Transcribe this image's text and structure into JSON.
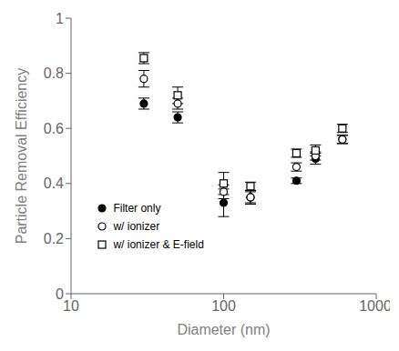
{
  "chart_data": {
    "type": "scatter",
    "xlabel": "Diameter (nm)",
    "ylabel": "Particle Removal Efficiency",
    "log": "x",
    "xlim": [
      10,
      1000
    ],
    "xticks": [
      10,
      100,
      1000
    ],
    "ylim": [
      0,
      1
    ],
    "yticks": [
      0,
      0.2,
      0.4,
      0.6,
      0.8,
      1
    ],
    "grid": false,
    "legend": "lower left",
    "series": [
      {
        "name": "Filter only",
        "color": "black",
        "marker": "filled_circle",
        "x": [
          30,
          50,
          100,
          150,
          300,
          400,
          600
        ],
        "values": [
          0.69,
          0.64,
          0.33,
          0.35,
          0.41,
          0.49,
          0.56
        ],
        "yerr": [
          0.02,
          0.02,
          0.05,
          0.02,
          0.01,
          0.02,
          0.015
        ]
      },
      {
        "name": "w/ ionizer",
        "color": "black",
        "marker": "open_circle",
        "x": [
          30,
          50,
          100,
          150,
          300,
          400,
          600
        ],
        "values": [
          0.78,
          0.69,
          0.37,
          0.35,
          0.46,
          0.5,
          0.56
        ],
        "yerr": [
          0.03,
          0.02,
          0.025,
          0.025,
          0.015,
          0.015,
          0.015
        ]
      },
      {
        "name": "w/ ionizer & E-field",
        "color": "black",
        "marker": "open_square",
        "x": [
          30,
          50,
          100,
          150,
          300,
          400,
          600
        ],
        "values": [
          0.855,
          0.72,
          0.4,
          0.39,
          0.51,
          0.52,
          0.6
        ],
        "yerr": [
          0.02,
          0.03,
          0.04,
          0.015,
          0.015,
          0.02,
          0.015
        ]
      }
    ]
  }
}
